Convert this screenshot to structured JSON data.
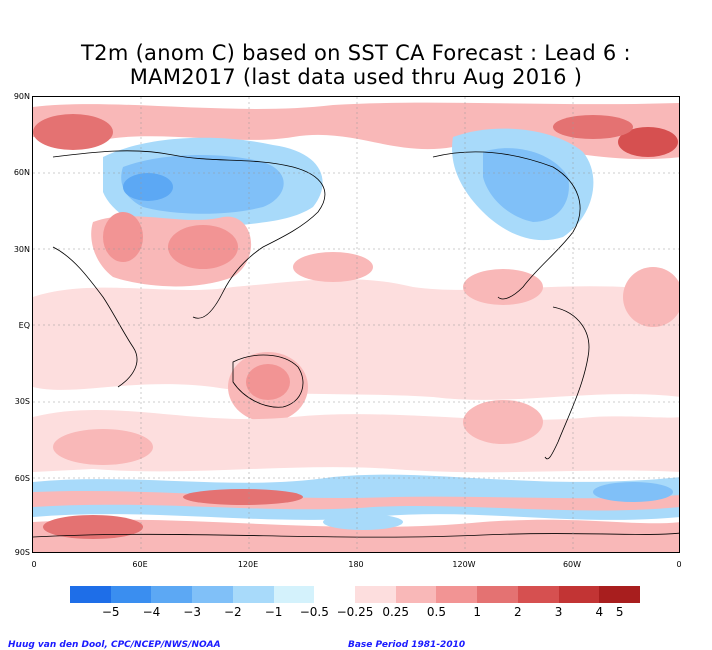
{
  "title_line1": "T2m (anom C) based on SST CA Forecast : Lead 6 :",
  "title_line2": "MAM2017 (last data used thru Aug 2016 )",
  "lat_labels": [
    "90N",
    "60N",
    "30N",
    "EQ",
    "30S",
    "60S",
    "90S"
  ],
  "lon_labels": [
    "0",
    "60E",
    "120E",
    "180",
    "120W",
    "60W",
    "0"
  ],
  "colorbar": {
    "colors": [
      "#1e6ee8",
      "#3a8ef0",
      "#5ca8f4",
      "#80c0f8",
      "#a8dafa",
      "#d4f2fc",
      "#ffffff",
      "#fddede",
      "#f9b8b8",
      "#f29494",
      "#e47272",
      "#d65050",
      "#c23434",
      "#a81e1e"
    ],
    "ticks": [
      "−5",
      "−4",
      "−3",
      "−2",
      "−1",
      "−0.5",
      "−0.25",
      "0.25",
      "0.5",
      "1",
      "2",
      "3",
      "4",
      "5"
    ]
  },
  "footer_left": "Huug van den Dool, CPC/NCEP/NWS/NOAA",
  "footer_right": "Base Period 1981-2010"
}
